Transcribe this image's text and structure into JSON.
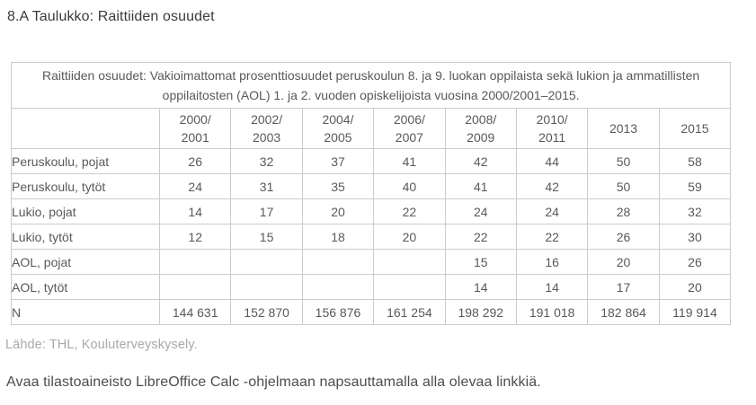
{
  "page": {
    "title": "8.A Taulukko: Raittiiden osuudet",
    "open_instruction": "Avaa tilastoaineisto LibreOffice Calc -ohjelmaan napsauttamalla alla olevaa linkkiä."
  },
  "table": {
    "caption": "Raittiiden osuudet: Vakioimattomat prosenttiosuudet peruskoulun 8. ja 9. luokan oppilaista sekä lukion ja ammatillisten oppilaitosten (AOL) 1. ja 2. vuoden opiskelijoista vuosina 2000/2001–2015.",
    "columns": [
      "",
      "2000/\n2001",
      "2002/\n2003",
      "2004/\n2005",
      "2006/\n2007",
      "2008/\n2009",
      "2010/\n2011",
      "2013",
      "2015"
    ],
    "rows": [
      {
        "label": "Peruskoulu, pojat",
        "values": [
          "26",
          "32",
          "37",
          "41",
          "42",
          "44",
          "50",
          "58"
        ]
      },
      {
        "label": "Peruskoulu, tytöt",
        "values": [
          "24",
          "31",
          "35",
          "40",
          "41",
          "42",
          "50",
          "59"
        ]
      },
      {
        "label": "Lukio, pojat",
        "values": [
          "14",
          "17",
          "20",
          "22",
          "24",
          "24",
          "28",
          "32"
        ]
      },
      {
        "label": "Lukio, tytöt",
        "values": [
          "12",
          "15",
          "18",
          "20",
          "22",
          "22",
          "26",
          "30"
        ]
      },
      {
        "label": "AOL, pojat",
        "values": [
          "",
          "",
          "",
          "",
          "15",
          "16",
          "20",
          "26"
        ]
      },
      {
        "label": "AOL, tytöt",
        "values": [
          "",
          "",
          "",
          "",
          "14",
          "14",
          "17",
          "20"
        ]
      },
      {
        "label": "N",
        "values": [
          "144 631",
          "152 870",
          "156 876",
          "161 254",
          "198 292",
          "191 018",
          "182 864",
          "119 914"
        ]
      }
    ],
    "source": "Lähde: THL, Kouluterveyskysely."
  },
  "colors": {
    "border": "#cccccc",
    "text_dark": "#3a3a3a",
    "text_cell": "#595959",
    "text_source": "#a9a9af",
    "background": "#ffffff"
  }
}
